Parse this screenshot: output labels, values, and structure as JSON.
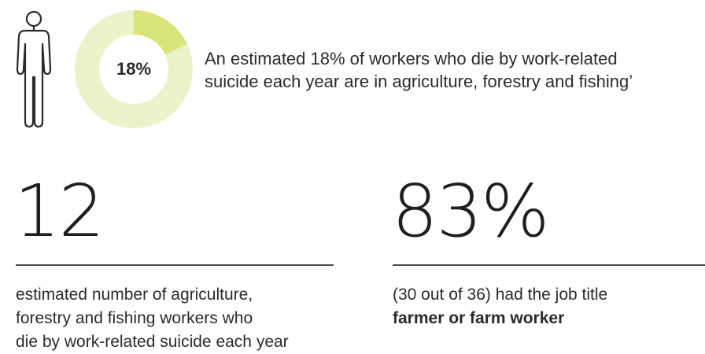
{
  "chart_data": {
    "type": "pie",
    "variant": "donut",
    "values": [
      18,
      82
    ],
    "unit": "%",
    "center_label": "18%",
    "colors": {
      "highlight": "#d9e57a",
      "rest": "#ecf2c9"
    }
  },
  "headline": {
    "line1": "An estimated 18% of workers who die by work-related",
    "line2": "suicide each year are in agriculture, forestry and fishing’"
  },
  "stats": [
    {
      "value": "12",
      "description_lines": [
        "estimated number of agriculture,",
        "forestry and fishing workers who",
        "die by work-related suicide each year"
      ]
    },
    {
      "value": "83%",
      "description_line1": "(30 out of 36) had the job title",
      "description_bold": "farmer or farm worker"
    }
  ],
  "icons": {
    "person": "person-outline-icon"
  },
  "colors": {
    "text": "#2b2b2b",
    "rule": "#4a4a4a"
  }
}
